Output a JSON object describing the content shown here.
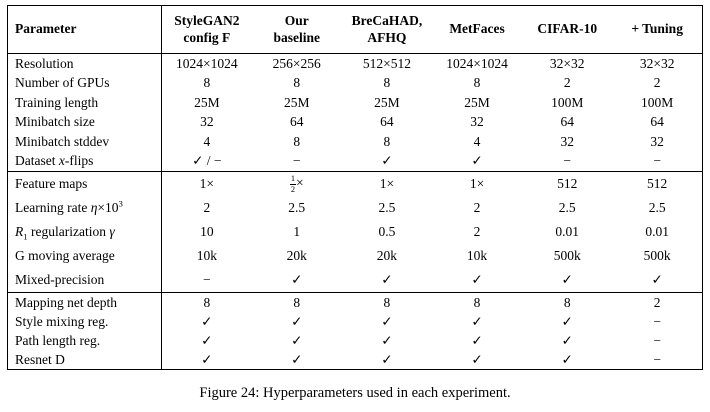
{
  "caption": "Figure 24: Hyperparameters used in each experiment.",
  "table": {
    "columns": [
      "Parameter",
      "StyleGAN2\nconfig F",
      "Our\nbaseline",
      "BreCaHAD,\nAFHQ",
      "MetFaces",
      "CIFAR-10",
      "+ Tuning"
    ],
    "sections": [
      {
        "rows": [
          {
            "label": "Resolution",
            "values": [
              "1024×1024",
              "256×256",
              "512×512",
              "1024×1024",
              "32×32",
              "32×32"
            ]
          },
          {
            "label": "Number of GPUs",
            "values": [
              "8",
              "8",
              "8",
              "8",
              "2",
              "2"
            ]
          },
          {
            "label": "Training length",
            "values": [
              "25M",
              "25M",
              "25M",
              "25M",
              "100M",
              "100M"
            ]
          },
          {
            "label": "Minibatch size",
            "values": [
              "32",
              "64",
              "64",
              "32",
              "64",
              "64"
            ]
          },
          {
            "label": "Minibatch stddev",
            "values": [
              "4",
              "8",
              "8",
              "4",
              "32",
              "32"
            ]
          },
          {
            "label": "Dataset <i>x</i>-flips",
            "values": [
              "✓ / −",
              "−",
              "✓",
              "✓",
              "−",
              "−"
            ]
          }
        ]
      },
      {
        "rows": [
          {
            "label": "Feature maps",
            "values": [
              "1×",
              "<span class=\"frac\"><span class=\"num\">1</span><span class=\"den\">2</span></span>×",
              "1×",
              "1×",
              "512",
              "512"
            ]
          },
          {
            "label": "Learning rate <i>η</i>×10<sup>3</sup>",
            "values": [
              "2",
              "2.5",
              "2.5",
              "2",
              "2.5",
              "2.5"
            ]
          },
          {
            "label": "<i>R</i><sub>1</sub> regularization <i>γ</i>",
            "values": [
              "10",
              "1",
              "0.5",
              "2",
              "0.01",
              "0.01"
            ]
          },
          {
            "label": "G moving average",
            "values": [
              "10k",
              "20k",
              "20k",
              "10k",
              "500k",
              "500k"
            ]
          },
          {
            "label": "Mixed-precision",
            "values": [
              "−",
              "✓",
              "✓",
              "✓",
              "✓",
              "✓"
            ]
          }
        ]
      },
      {
        "rows": [
          {
            "label": "Mapping net depth",
            "values": [
              "8",
              "8",
              "8",
              "8",
              "8",
              "2"
            ]
          },
          {
            "label": "Style mixing reg.",
            "values": [
              "✓",
              "✓",
              "✓",
              "✓",
              "✓",
              "−"
            ]
          },
          {
            "label": "Path length reg.",
            "values": [
              "✓",
              "✓",
              "✓",
              "✓",
              "✓",
              "−"
            ]
          },
          {
            "label": "Resnet D",
            "values": [
              "✓",
              "✓",
              "✓",
              "✓",
              "✓",
              "−"
            ]
          }
        ]
      }
    ]
  }
}
